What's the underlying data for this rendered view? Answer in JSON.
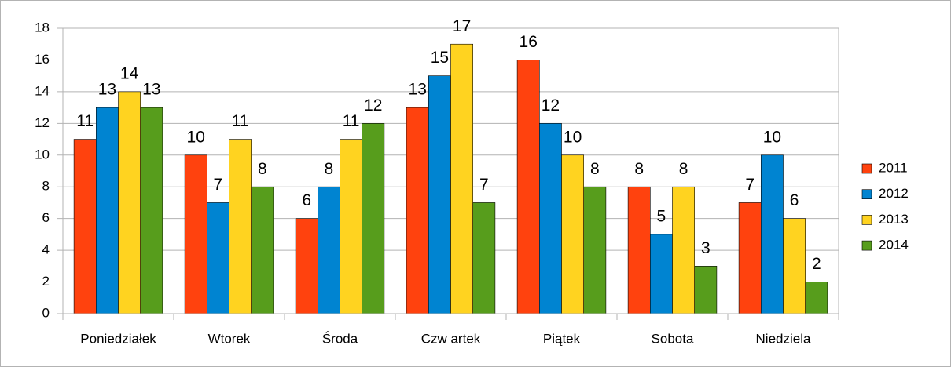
{
  "chart_data": {
    "type": "bar",
    "categories": [
      "Poniedziałek",
      "Wtorek",
      "Środa",
      "Czw artek",
      "Piątek",
      "Sobota",
      "Niedziela"
    ],
    "series": [
      {
        "name": "2011",
        "color": "#ff420e",
        "values": [
          11,
          10,
          6,
          13,
          16,
          8,
          7
        ]
      },
      {
        "name": "2012",
        "color": "#0084d1",
        "values": [
          13,
          7,
          8,
          15,
          12,
          5,
          10
        ]
      },
      {
        "name": "2013",
        "color": "#ffd320",
        "values": [
          14,
          11,
          11,
          17,
          10,
          8,
          6
        ]
      },
      {
        "name": "2014",
        "color": "#579d1c",
        "values": [
          13,
          8,
          12,
          7,
          8,
          3,
          2
        ]
      }
    ],
    "ylim": [
      0,
      18
    ],
    "yticks": [
      0,
      2,
      4,
      6,
      8,
      10,
      12,
      14,
      16,
      18
    ],
    "grid": true,
    "legend": "right"
  }
}
